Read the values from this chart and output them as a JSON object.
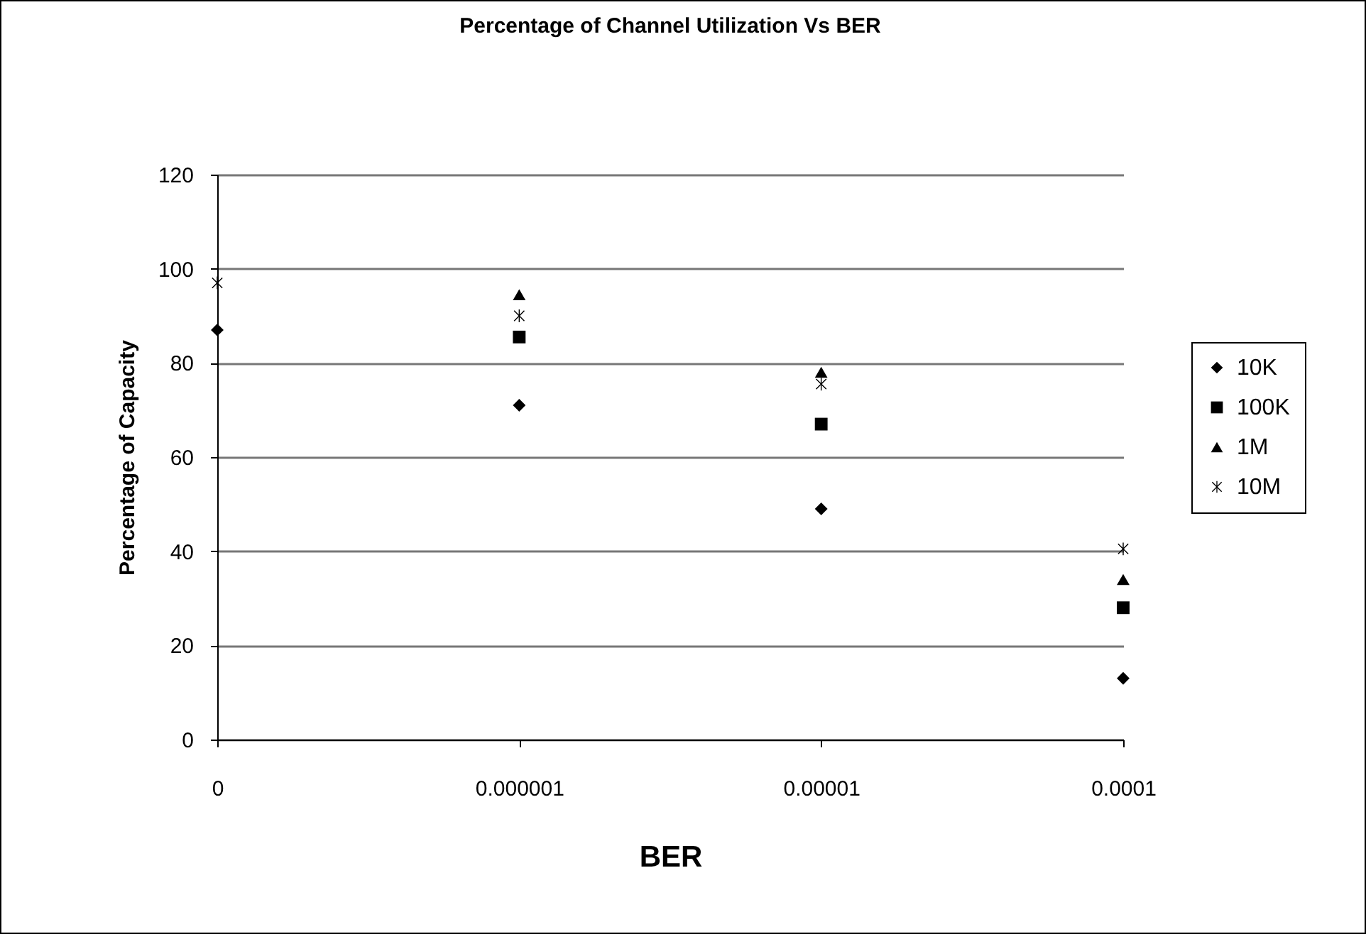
{
  "chart_data": {
    "type": "scatter",
    "title": "Percentage of Channel Utilization Vs BER",
    "xlabel": "BER",
    "ylabel": "Percentage of Capacity",
    "categories": [
      "0",
      "0.000001",
      "0.00001",
      "0.0001"
    ],
    "series": [
      {
        "name": "10K",
        "color": "#000000",
        "marker": "diamond",
        "values": [
          87,
          71,
          49,
          13
        ]
      },
      {
        "name": "100K",
        "color": "#000000",
        "marker": "square",
        "values": [
          null,
          85.5,
          67,
          28
        ]
      },
      {
        "name": "1M",
        "color": "#000000",
        "marker": "triangle",
        "values": [
          null,
          94.5,
          78,
          34
        ]
      },
      {
        "name": "10M",
        "color": "#000000",
        "marker": "cross",
        "values": [
          97,
          90,
          75.5,
          40.5
        ]
      }
    ],
    "ylim": [
      0,
      120
    ],
    "yticks": [
      0,
      20,
      40,
      60,
      80,
      100,
      120
    ],
    "grid": "y",
    "legend": "right"
  }
}
